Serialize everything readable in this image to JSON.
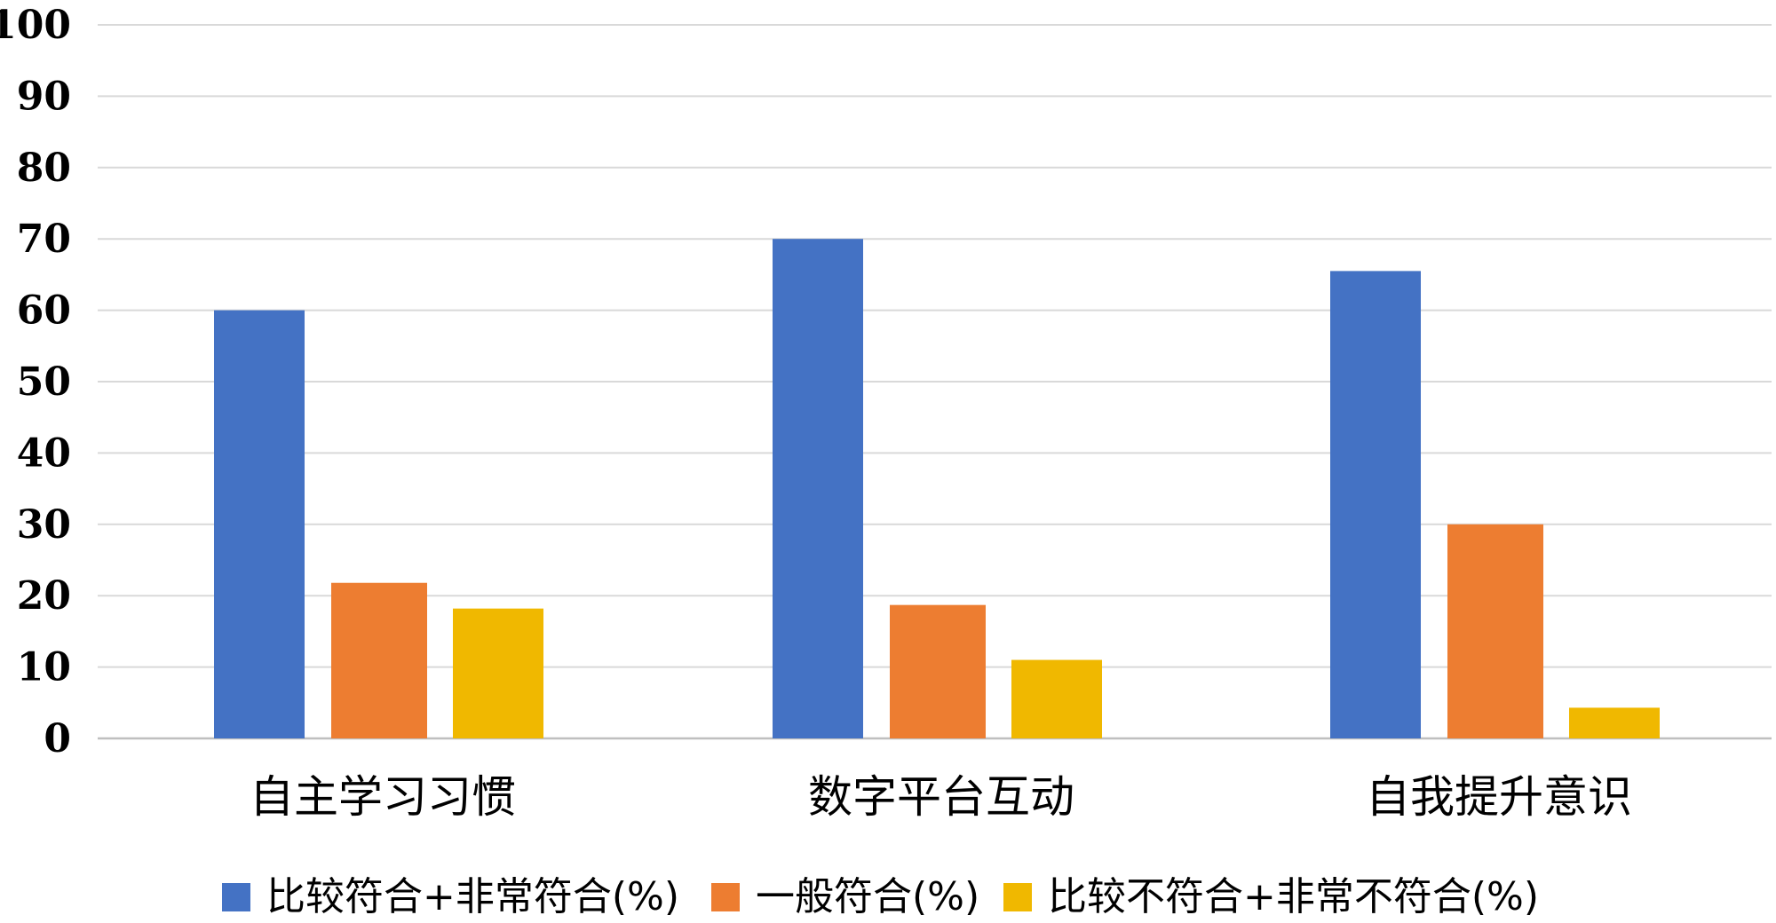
{
  "chart_data": {
    "type": "bar",
    "categories": [
      "自主学习习惯",
      "数字平台互动",
      "自我提升意识"
    ],
    "series": [
      {
        "name": "比较符合+非常符合(%)",
        "color": "#4472C4",
        "values": [
          60,
          70,
          65.5
        ]
      },
      {
        "name": "一般符合(%)",
        "color": "#ED7D31",
        "values": [
          21.8,
          18.7,
          30
        ]
      },
      {
        "name": "比较不符合+非常不符合(%)",
        "color": "#F0B800",
        "values": [
          18.2,
          11,
          4.3
        ]
      }
    ],
    "ylim": [
      0,
      100
    ],
    "yticks": [
      "0",
      "10",
      "20",
      "30",
      "40",
      "50",
      "60",
      "70",
      "80",
      "90",
      "100"
    ],
    "grid": true,
    "legend": "bottom",
    "title": "",
    "xlabel": "",
    "ylabel": ""
  }
}
